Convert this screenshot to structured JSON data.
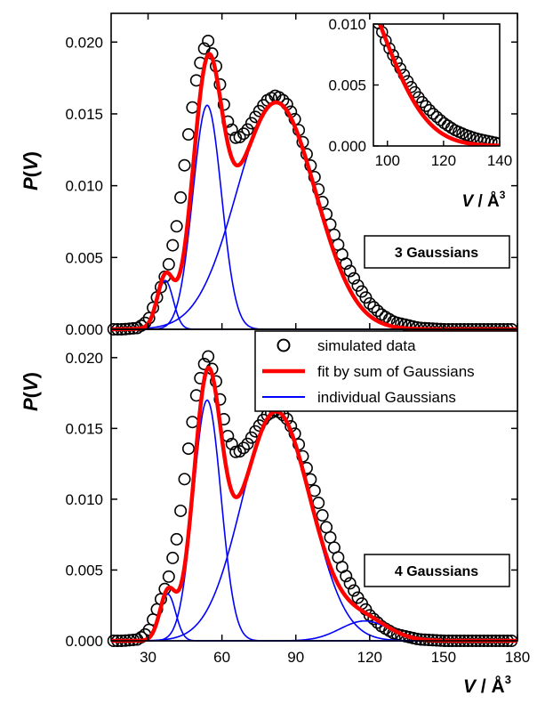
{
  "colors": {
    "markers": "#000000",
    "fit": "#ff0000",
    "components": "#0000ff"
  },
  "chart_data": [
    {
      "panel": "top",
      "type": "line",
      "ylabel_parts": [
        "P",
        "(",
        "V",
        ")"
      ],
      "ylim": [
        0,
        0.022
      ],
      "yticks": [
        0,
        0.005,
        0.01,
        0.015,
        0.02
      ],
      "ytick_labels": [
        "0.000",
        "0.005",
        "0.010",
        "0.015",
        "0.020"
      ],
      "xlim": [
        15,
        180
      ],
      "annotation": "3 Gaussians",
      "components": [
        {
          "amp": 0.0034,
          "mu": 37,
          "sigma": 3.2
        },
        {
          "amp": 0.0156,
          "mu": 54,
          "sigma": 5.8
        },
        {
          "amp": 0.0158,
          "mu": 82,
          "sigma": 16
        }
      ],
      "simulated_data": {
        "x": [
          20,
          26,
          30,
          34,
          38,
          42,
          46,
          50,
          54,
          58,
          62,
          66,
          70,
          74,
          78,
          82,
          86,
          90,
          94,
          98,
          102,
          106,
          110,
          115,
          120,
          125,
          130,
          140,
          150,
          160,
          175
        ],
        "y": [
          0.0,
          0.0001,
          0.0006,
          0.0024,
          0.0042,
          0.0075,
          0.0131,
          0.0178,
          0.0203,
          0.0181,
          0.0146,
          0.0132,
          0.0138,
          0.0149,
          0.0159,
          0.0163,
          0.0158,
          0.0145,
          0.0124,
          0.0104,
          0.0082,
          0.0064,
          0.0047,
          0.0031,
          0.0018,
          0.001,
          0.0005,
          0.0001,
          0.0,
          0.0,
          0.0
        ]
      },
      "inset": {
        "xlim": [
          95,
          140
        ],
        "ylim": [
          0,
          0.01
        ],
        "xticks": [
          100,
          120,
          140
        ],
        "xtick_labels": [
          "100",
          "120",
          "140"
        ],
        "yticks": [
          0,
          0.005,
          0.01
        ],
        "ytick_labels": [
          "0.000",
          "0.005",
          "0.010"
        ],
        "xlabel_parts": [
          "V",
          " / Å",
          "3"
        ],
        "simulated_data": {
          "x": [
            96,
            100,
            104,
            108,
            112,
            116,
            120,
            124,
            128,
            132,
            136,
            140
          ],
          "y": [
            0.0105,
            0.0083,
            0.0066,
            0.005,
            0.0037,
            0.0027,
            0.0019,
            0.0013,
            0.0009,
            0.0006,
            0.0004,
            0.0002
          ]
        }
      }
    },
    {
      "panel": "bottom",
      "type": "line",
      "ylabel_parts": [
        "P",
        "(",
        "V",
        ")"
      ],
      "ylim": [
        0,
        0.022
      ],
      "yticks": [
        0,
        0.005,
        0.01,
        0.015,
        0.02
      ],
      "ytick_labels": [
        "0.000",
        "0.005",
        "0.010",
        "0.015",
        "0.020"
      ],
      "xlim": [
        15,
        180
      ],
      "xticks": [
        30,
        60,
        90,
        120,
        150,
        180
      ],
      "xtick_labels": [
        "30",
        "60",
        "90",
        "120",
        "150",
        "180"
      ],
      "xlabel_parts": [
        "V",
        " / Å",
        "3"
      ],
      "annotation": "4 Gaussians",
      "components": [
        {
          "amp": 0.0033,
          "mu": 38,
          "sigma": 3.2
        },
        {
          "amp": 0.017,
          "mu": 54,
          "sigma": 5.6
        },
        {
          "amp": 0.0162,
          "mu": 82,
          "sigma": 14
        },
        {
          "amp": 0.0014,
          "mu": 118,
          "sigma": 10
        }
      ],
      "simulated_data": {
        "x": [
          20,
          26,
          30,
          34,
          38,
          42,
          46,
          50,
          54,
          58,
          62,
          66,
          70,
          74,
          78,
          82,
          86,
          90,
          94,
          98,
          102,
          106,
          110,
          115,
          120,
          125,
          130,
          140,
          150,
          160,
          175
        ],
        "y": [
          0.0,
          0.0001,
          0.0006,
          0.0024,
          0.0042,
          0.0075,
          0.0131,
          0.0178,
          0.0203,
          0.0181,
          0.0146,
          0.0132,
          0.0138,
          0.0149,
          0.0159,
          0.0163,
          0.0158,
          0.0145,
          0.0124,
          0.0104,
          0.0082,
          0.0064,
          0.0047,
          0.0031,
          0.0018,
          0.001,
          0.0005,
          0.0001,
          0.0,
          0.0,
          0.0
        ]
      }
    }
  ],
  "legend": [
    {
      "key": "markers",
      "label": "simulated data"
    },
    {
      "key": "fit",
      "label": "fit by sum of Gaussians"
    },
    {
      "key": "components",
      "label": "individual Gaussians"
    }
  ]
}
